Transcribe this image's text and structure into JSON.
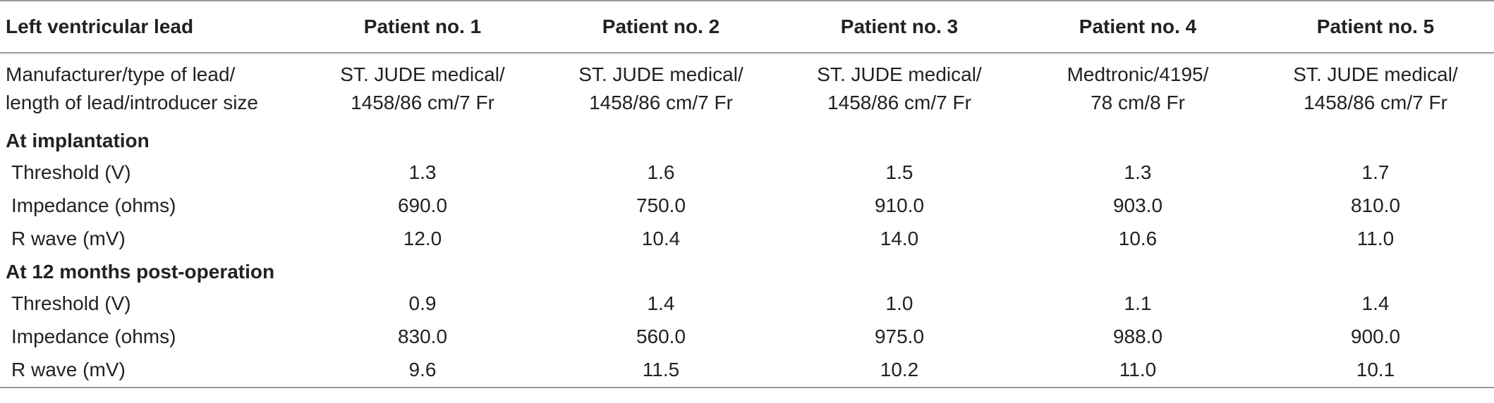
{
  "table": {
    "headers": [
      "Left ventricular lead",
      "Patient no. 1",
      "Patient no. 2",
      "Patient no. 3",
      "Patient no. 4",
      "Patient no. 5"
    ],
    "manufacturer_row": {
      "label_line1": "Manufacturer/type of lead/",
      "label_line2": "length of lead/introducer size",
      "cells": [
        {
          "line1": "ST. JUDE medical/",
          "line2": "1458/86 cm/7 Fr"
        },
        {
          "line1": "ST. JUDE medical/",
          "line2": "1458/86 cm/7 Fr"
        },
        {
          "line1": "ST. JUDE medical/",
          "line2": "1458/86 cm/7 Fr"
        },
        {
          "line1": "Medtronic/4195/",
          "line2": "78 cm/8 Fr"
        },
        {
          "line1": "ST. JUDE medical/",
          "line2": "1458/86 cm/7 Fr"
        }
      ]
    },
    "sections": [
      {
        "title": "At implantation",
        "rows": [
          {
            "label": "Threshold (V)",
            "values": [
              "1.3",
              "1.6",
              "1.5",
              "1.3",
              "1.7"
            ]
          },
          {
            "label": "Impedance (ohms)",
            "values": [
              "690.0",
              "750.0",
              "910.0",
              "903.0",
              "810.0"
            ]
          },
          {
            "label": "R wave (mV)",
            "values": [
              "12.0",
              "10.4",
              "14.0",
              "10.6",
              "11.0"
            ]
          }
        ]
      },
      {
        "title": "At 12 months post-operation",
        "rows": [
          {
            "label": "Threshold (V)",
            "values": [
              "0.9",
              "1.4",
              "1.0",
              "1.1",
              "1.4"
            ]
          },
          {
            "label": "Impedance (ohms)",
            "values": [
              "830.0",
              "560.0",
              "975.0",
              "988.0",
              "900.0"
            ]
          },
          {
            "label": "R wave (mV)",
            "values": [
              "9.6",
              "11.5",
              "10.2",
              "11.0",
              "10.1"
            ]
          }
        ]
      }
    ]
  }
}
